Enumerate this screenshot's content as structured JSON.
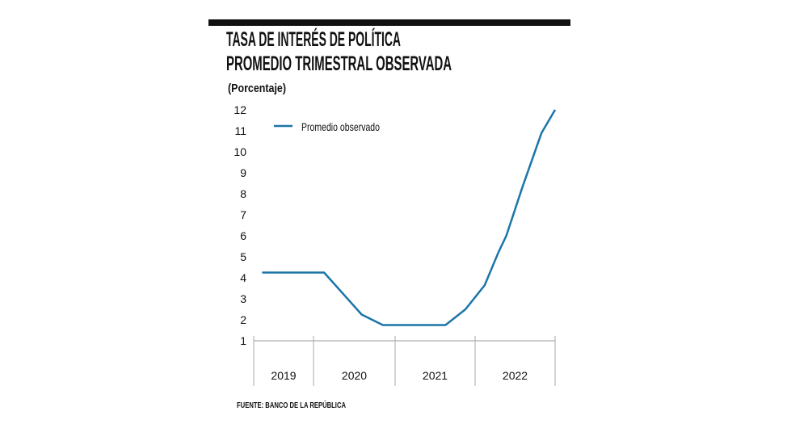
{
  "title_line1": "TASA DE INTERÉS DE POLÍTICA",
  "title_line2": "PROMEDIO TRIMESTRAL OBSERVADA",
  "unit": "(Porcentaje)",
  "source": "FUENTE: BANCO DE LA REPÚBLICA",
  "chart_data": {
    "type": "line",
    "title": "TASA DE INTERÉS DE POLÍTICA PROMEDIO TRIMESTRAL OBSERVADA",
    "ylabel": "(Porcentaje)",
    "ylim": [
      1,
      12
    ],
    "yticks": [
      "1",
      "2",
      "3",
      "4",
      "5",
      "6",
      "7",
      "8",
      "9",
      "10",
      "11",
      "12"
    ],
    "xlim": [
      2019,
      2023
    ],
    "xcategories": [
      "2019",
      "2020",
      "2021",
      "2022"
    ],
    "grid": false,
    "legend_placement": "top-left",
    "series": [
      {
        "name": "Promedio observado",
        "color": "#1b75a8",
        "points": [
          [
            2019.14,
            4.25
          ],
          [
            2020.13,
            4.25
          ],
          [
            2020.59,
            2.25
          ],
          [
            2020.85,
            1.75
          ],
          [
            2021.63,
            1.75
          ],
          [
            2021.88,
            2.5
          ],
          [
            2022.12,
            3.65
          ],
          [
            2022.29,
            5.2
          ],
          [
            2022.39,
            6.0
          ],
          [
            2022.59,
            8.3
          ],
          [
            2022.83,
            10.9
          ],
          [
            2023.0,
            12.0
          ]
        ]
      }
    ]
  }
}
